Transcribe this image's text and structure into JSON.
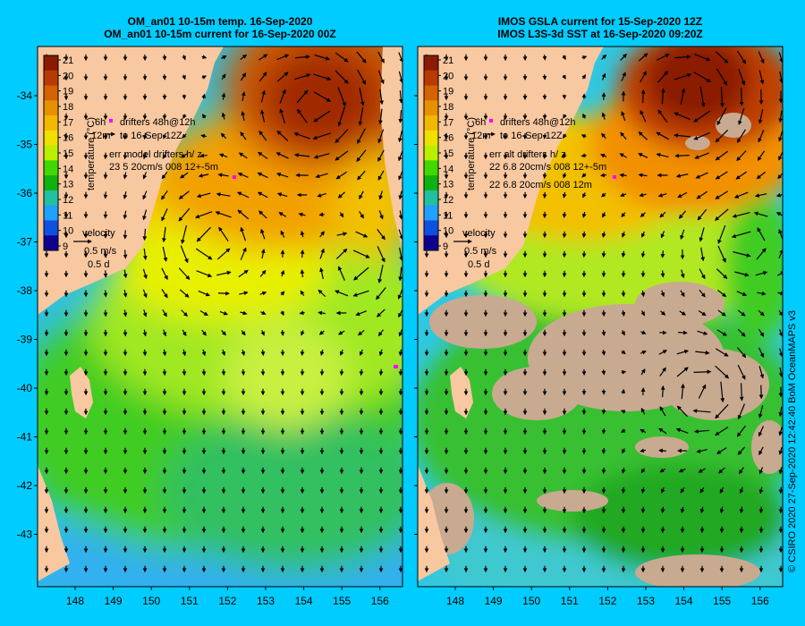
{
  "panels": [
    {
      "id": "left",
      "title_line1": "OM_an01 10-15m temp. 16-Sep-2020",
      "title_line2": "OM_an01 10-15m current for 16-Sep-2020 00Z",
      "legend_line1": "drifters 48h@12h",
      "legend_line2": "to 16-Sep 12Z",
      "legend_label_a": "6h",
      "legend_label_b": "12m",
      "err_line1": "err model drifters h/ z",
      "err_line2": "23 5 20cm/s 008 12+-5m",
      "err_line3": "",
      "velocity_label": "velocity",
      "velocity_speed": "0.5 m/s",
      "velocity_time": "0.5 d",
      "has_gaps": false
    },
    {
      "id": "right",
      "title_line1": "IMOS GSLA current for 15-Sep-2020 12Z",
      "title_line2": "IMOS L3S-3d SST at 16-Sep-2020 09:20Z",
      "legend_line1": "drifters 48h@12h",
      "legend_line2": "to 16-Sep 12Z",
      "legend_label_a": "6h",
      "legend_label_b": "12m",
      "err_line1": "err alt drifters h/ z",
      "err_line2": "22 6.8 20cm/s 008 12+-5m",
      "err_line3": "22 6.8 20cm/s 008 12m",
      "velocity_label": "velocity",
      "velocity_speed": "0.5 m/s",
      "velocity_time": "0.5 d",
      "has_gaps": true
    }
  ],
  "colorbar": {
    "label": "temperature (°C)",
    "ticks": [
      "21",
      "20",
      "19",
      "18",
      "17",
      "16",
      "15",
      "14",
      "13",
      "12",
      "11",
      "10",
      "9"
    ],
    "colors": [
      "#8b1a00",
      "#b83a00",
      "#d46200",
      "#e89000",
      "#f2b800",
      "#f0e000",
      "#b8f000",
      "#40d800",
      "#10b010",
      "#20c0a0",
      "#20a0ff",
      "#1050e0",
      "#100090"
    ]
  },
  "lon_ticks": [
    "148",
    "149",
    "150",
    "151",
    "152",
    "153",
    "154",
    "155",
    "156"
  ],
  "lat_ticks": [
    "-34",
    "-35",
    "-36",
    "-37",
    "-38",
    "-39",
    "-40",
    "-41",
    "-42",
    "-43"
  ],
  "colors": {
    "background": "#00ccff",
    "land": "#f8c8a0",
    "no_data": "#c8aa90",
    "arrow": "#000000",
    "drifter": "#ff00ff"
  },
  "credit": "© CSIRO 2020   27-Sep-2020 12:42:40 BoM OceanMAPS v3"
}
